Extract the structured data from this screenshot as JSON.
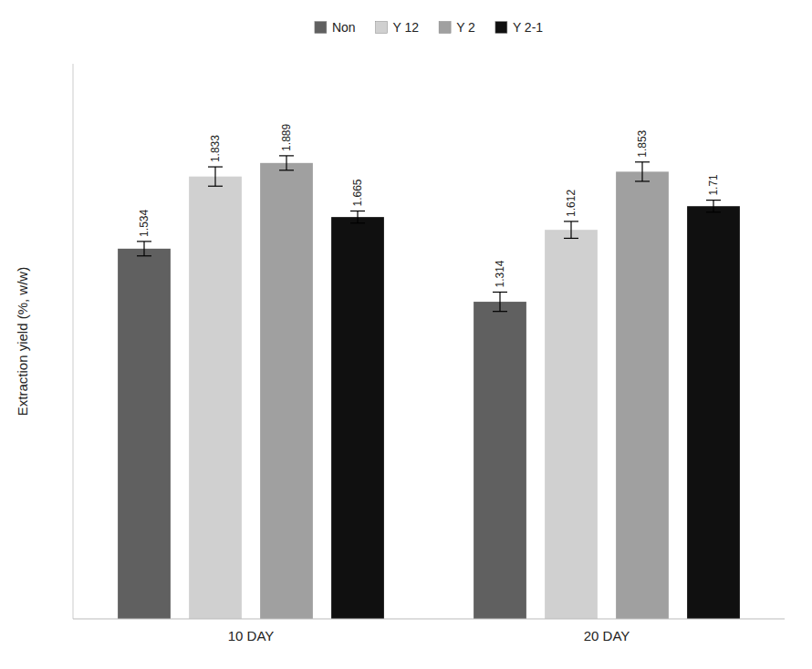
{
  "chart_data": {
    "type": "bar",
    "ylabel": "Extraction yield (%, w/w)",
    "categories": [
      "10 DAY",
      "20 DAY"
    ],
    "series": [
      {
        "name": "Non",
        "color": "#606060",
        "values": [
          1.534,
          1.314
        ],
        "errors": [
          0.03,
          0.04
        ]
      },
      {
        "name": "Y 12",
        "color": "#d0d0d0",
        "values": [
          1.833,
          1.612
        ],
        "errors": [
          0.04,
          0.035
        ]
      },
      {
        "name": "Y 2",
        "color": "#a0a0a0",
        "values": [
          1.889,
          1.853
        ],
        "errors": [
          0.03,
          0.04
        ]
      },
      {
        "name": "Y 2-1",
        "color": "#101010",
        "values": [
          1.665,
          1.71
        ],
        "errors": [
          0.025,
          0.025
        ]
      }
    ],
    "ylim": [
      0,
      2.3
    ],
    "grid": false,
    "legend": "top",
    "data_labels": true,
    "tick_labels": "x"
  }
}
